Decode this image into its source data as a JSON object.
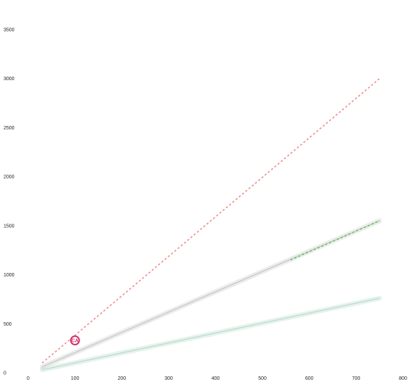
{
  "chart_data": {
    "type": "line",
    "title": "",
    "xlabel": "",
    "ylabel": "",
    "xlim": [
      0,
      800
    ],
    "ylim": [
      0,
      3500
    ],
    "x_ticks": [
      0,
      100,
      200,
      300,
      400,
      500,
      600,
      700,
      800
    ],
    "x_tick_labels": [
      "0",
      "100",
      "200",
      "300",
      "400",
      "500",
      "600",
      "700",
      "800"
    ],
    "y_ticks": [
      0,
      500,
      1000,
      1500,
      2000,
      2500,
      3000,
      3500
    ],
    "y_tick_labels": [
      "0",
      "500",
      "1000",
      "1500",
      "2000",
      "2500",
      "3000",
      "3500"
    ],
    "grid": false,
    "legend": "none",
    "series": [
      {
        "color": "#f08a8a",
        "style": "dashed",
        "band": false,
        "x": [
          30,
          750
        ],
        "y": [
          100,
          3000
        ]
      },
      {
        "color": "#c8c8c8",
        "style": "solid",
        "band": true,
        "x": [
          30,
          750
        ],
        "y": [
          60,
          1550
        ]
      },
      {
        "color": "#b9dccb",
        "style": "solid",
        "band": true,
        "x": [
          30,
          750
        ],
        "y": [
          30,
          760
        ]
      },
      {
        "color": "#5ac85a",
        "style": "dashed",
        "band": false,
        "x": [
          560,
          750
        ],
        "y": [
          1150,
          1550
        ]
      }
    ],
    "markers": [
      {
        "label": "CA",
        "x": 100,
        "y": 330,
        "color": "#d0306a"
      }
    ],
    "annotations": []
  }
}
